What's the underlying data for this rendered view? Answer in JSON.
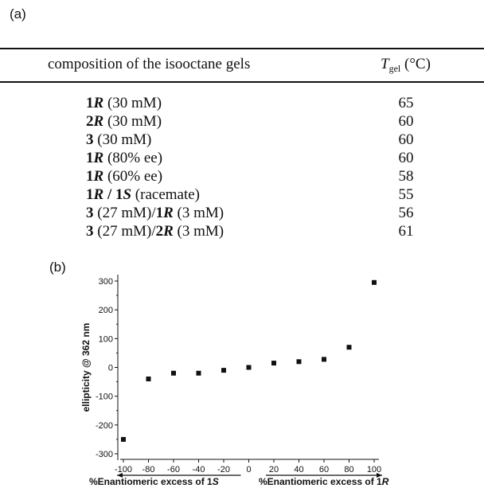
{
  "panels": {
    "a": "(a)",
    "b": "(b)"
  },
  "table": {
    "header": {
      "composition": "composition of the isooctane gels",
      "tgel_var": "T",
      "tgel_sub": "gel",
      "tgel_unit": " (°C)"
    },
    "rows": [
      {
        "parts": [
          {
            "t": "1",
            "b": true
          },
          {
            "t": "R",
            "b": true,
            "i": true
          },
          {
            "t": " (30 mM)"
          }
        ],
        "tgel": "65"
      },
      {
        "parts": [
          {
            "t": "2",
            "b": true
          },
          {
            "t": "R",
            "b": true,
            "i": true
          },
          {
            "t": " (30 mM)"
          }
        ],
        "tgel": "60"
      },
      {
        "parts": [
          {
            "t": "3",
            "b": true
          },
          {
            "t": " (30 mM)"
          }
        ],
        "tgel": "60"
      },
      {
        "parts": [
          {
            "t": "1",
            "b": true
          },
          {
            "t": "R",
            "b": true,
            "i": true
          },
          {
            "t": " (80% ee)"
          }
        ],
        "tgel": "60"
      },
      {
        "parts": [
          {
            "t": "1",
            "b": true
          },
          {
            "t": "R",
            "b": true,
            "i": true
          },
          {
            "t": " (60% ee)"
          }
        ],
        "tgel": "58"
      },
      {
        "parts": [
          {
            "t": "1",
            "b": true
          },
          {
            "t": "R",
            "b": true,
            "i": true
          },
          {
            "t": " / ",
            "b": true
          },
          {
            "t": "1",
            "b": true
          },
          {
            "t": "S",
            "b": true,
            "i": true
          },
          {
            "t": " (racemate)"
          }
        ],
        "tgel": "55"
      },
      {
        "parts": [
          {
            "t": "3",
            "b": true
          },
          {
            "t": " (27 mM)/"
          },
          {
            "t": "1",
            "b": true
          },
          {
            "t": "R",
            "b": true,
            "i": true
          },
          {
            "t": " (3 mM)"
          }
        ],
        "tgel": "56"
      },
      {
        "parts": [
          {
            "t": "3",
            "b": true
          },
          {
            "t": " (27 mM)/"
          },
          {
            "t": "2",
            "b": true
          },
          {
            "t": "R",
            "b": true,
            "i": true
          },
          {
            "t": " (3 mM)"
          }
        ],
        "tgel": "61"
      }
    ]
  },
  "chart_data": {
    "type": "scatter",
    "ylabel": "ellipticity @ 362 nm",
    "xlabel_left": {
      "text": "%Enantiomeric excess of 1",
      "italic": "S"
    },
    "xlabel_right": {
      "text": "%Enantiomeric excess of 1",
      "italic": "R"
    },
    "xlim": [
      -100,
      100
    ],
    "ylim": [
      -300,
      300
    ],
    "xticks": [
      -100,
      -80,
      -60,
      -40,
      -20,
      0,
      20,
      40,
      60,
      80,
      100
    ],
    "yticks": [
      -300,
      -200,
      -100,
      0,
      100,
      200,
      300
    ],
    "grid": false,
    "series": [
      {
        "color": "#111111",
        "marker": "square",
        "x": [
          -100,
          -80,
          -60,
          -40,
          -20,
          0,
          20,
          40,
          60,
          80,
          100
        ],
        "y": [
          -250,
          -40,
          -20,
          -20,
          -10,
          0,
          15,
          20,
          28,
          70,
          295
        ]
      }
    ]
  }
}
